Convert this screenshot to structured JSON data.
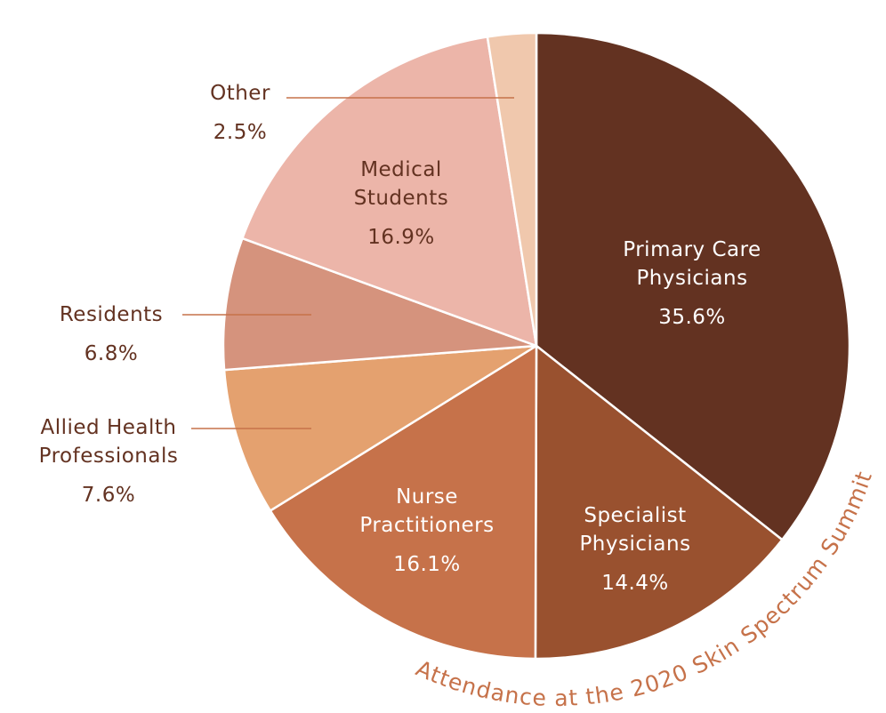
{
  "chart_data": {
    "type": "pie",
    "title": "Attendance at the 2020 Skin Spectrum Summit",
    "slices": [
      {
        "label": [
          "Primary Care",
          "Physicians"
        ],
        "value": 35.6,
        "value_label": "35.6%",
        "color": "#633221",
        "label_color": "#ffffff",
        "placement": "inside"
      },
      {
        "label": [
          "Specialist",
          "Physicians"
        ],
        "value": 14.4,
        "value_label": "14.4%",
        "color": "#99512f",
        "label_color": "#ffffff",
        "placement": "inside"
      },
      {
        "label": [
          "Nurse",
          "Practitioners"
        ],
        "value": 16.1,
        "value_label": "16.1%",
        "color": "#c6724a",
        "label_color": "#ffffff",
        "placement": "inside"
      },
      {
        "label": [
          "Allied Health",
          "Professionals"
        ],
        "value": 7.6,
        "value_label": "7.6%",
        "color": "#e4a16f",
        "label_color": "#633221",
        "placement": "outside-left"
      },
      {
        "label": [
          "Residents"
        ],
        "value": 6.8,
        "value_label": "6.8%",
        "color": "#d5937d",
        "label_color": "#633221",
        "placement": "outside-left"
      },
      {
        "label": [
          "Medical",
          "Students"
        ],
        "value": 16.9,
        "value_label": "16.9%",
        "color": "#ecb5a9",
        "label_color": "#633221",
        "placement": "inside"
      },
      {
        "label": [
          "Other"
        ],
        "value": 2.5,
        "value_label": "2.5%",
        "color": "#f0c8ad",
        "label_color": "#633221",
        "placement": "outside-left"
      }
    ],
    "start_angle": "12 o'clock",
    "direction": "clockwise",
    "legend": "none",
    "colors": {
      "leader_line": "#c6724a",
      "title": "#c6724a",
      "slice_border": "#ffffff"
    }
  }
}
